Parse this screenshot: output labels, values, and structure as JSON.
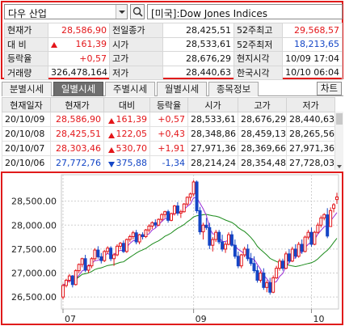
{
  "search": {
    "stock_name": "다우 산업",
    "index_label": "[미국]:Dow Jones Indices"
  },
  "quote": {
    "rows": [
      [
        {
          "label": "현재가"
        },
        {
          "value": "28,586,90",
          "cls": "up"
        },
        {
          "label": "전일종가"
        },
        {
          "value": "28,425,51"
        },
        {
          "label": "52주최고"
        },
        {
          "value": "29,568,57",
          "cls": "up"
        }
      ],
      [
        {
          "label": "대  비"
        },
        {
          "value": "161,39",
          "cls": "up",
          "arrow": "up"
        },
        {
          "label": "시가"
        },
        {
          "value": "28,533,61"
        },
        {
          "label": "52주최저"
        },
        {
          "value": "18,213,65",
          "cls": "down"
        }
      ],
      [
        {
          "label": "등락율"
        },
        {
          "value": "+0,57",
          "cls": "up"
        },
        {
          "label": "고가"
        },
        {
          "value": "28,676,29"
        },
        {
          "label": "현지시각"
        },
        {
          "value": "10/09 17:04"
        }
      ],
      [
        {
          "label": "거래량"
        },
        {
          "value": "326,478,164"
        },
        {
          "label": "저가"
        },
        {
          "value": "28,440,63"
        },
        {
          "label": "한국시각"
        },
        {
          "value": "10/10 06:04"
        }
      ]
    ]
  },
  "tabs": [
    {
      "label": "분별시세",
      "active": false
    },
    {
      "label": "일별시세",
      "active": true
    },
    {
      "label": "주별시세",
      "active": false
    },
    {
      "label": "월별시세",
      "active": false
    },
    {
      "label": "종목정보",
      "active": false
    }
  ],
  "chart_button": "차트",
  "daily": {
    "headers": [
      "현재일자",
      "현재가",
      "대비",
      "등락율",
      "시가",
      "고가",
      "저가"
    ],
    "rows": [
      {
        "date": "20/10/09",
        "price": "28,586,90",
        "change": "161,39",
        "dir": "up",
        "rate": "+0,57",
        "open": "28,533,61",
        "high": "28,676,29",
        "low": "28,440,63"
      },
      {
        "date": "20/10/08",
        "price": "28,425,51",
        "change": "122,05",
        "dir": "up",
        "rate": "+0,43",
        "open": "28,348,86",
        "high": "28,459,13",
        "low": "28,265,56"
      },
      {
        "date": "20/10/07",
        "price": "28,303,46",
        "change": "530,70",
        "dir": "up",
        "rate": "+1,91",
        "open": "27,971,36",
        "high": "28,369,66",
        "low": "27,971,36"
      },
      {
        "date": "20/10/06",
        "price": "27,772,76",
        "change": "375,88",
        "dir": "down",
        "rate": "-1,34",
        "open": "28,214,24",
        "high": "28,354,48",
        "low": "27,728,03"
      }
    ]
  },
  "chart_data": {
    "type": "candlestick",
    "y_ticks": [
      "28,500.00",
      "28,000.00",
      "27,500.00",
      "27,000.00",
      "26,500.00"
    ],
    "y_tick_values": [
      28500,
      28000,
      27500,
      27000,
      26500
    ],
    "ylim": [
      26250,
      28950
    ],
    "x_ticks": [
      {
        "label": "07",
        "index": 0
      },
      {
        "label": "09",
        "index": 41
      },
      {
        "label": "10",
        "index": 78
      }
    ],
    "colors": {
      "up": "#e3161a",
      "down": "#1446c6",
      "ma_short": "#9a2bd6",
      "ma_long": "#1a8a1a"
    },
    "candles": [
      [
        26500,
        26780,
        26450,
        26740
      ],
      [
        26740,
        26880,
        26700,
        26850
      ],
      [
        26850,
        26980,
        26800,
        26940
      ],
      [
        26940,
        26960,
        26700,
        26760
      ],
      [
        26760,
        27080,
        26740,
        27050
      ],
      [
        27050,
        27200,
        27000,
        27180
      ],
      [
        27180,
        27320,
        27120,
        27300
      ],
      [
        27300,
        27380,
        27020,
        27060
      ],
      [
        27060,
        27180,
        27000,
        27150
      ],
      [
        27150,
        27330,
        27100,
        27300
      ],
      [
        27300,
        27520,
        27260,
        27480
      ],
      [
        27480,
        27560,
        27300,
        27340
      ],
      [
        27340,
        27420,
        27200,
        27260
      ],
      [
        27260,
        27480,
        27230,
        27450
      ],
      [
        27450,
        27560,
        27400,
        27520
      ],
      [
        27520,
        27560,
        27250,
        27300
      ],
      [
        27300,
        27420,
        27150,
        27380
      ],
      [
        27380,
        27600,
        27350,
        27560
      ],
      [
        27560,
        27650,
        27500,
        27620
      ],
      [
        27620,
        27680,
        27420,
        27450
      ],
      [
        27450,
        27720,
        27420,
        27700
      ],
      [
        27700,
        27800,
        27650,
        27760
      ],
      [
        27760,
        27880,
        27700,
        27840
      ],
      [
        27840,
        27900,
        27600,
        27650
      ],
      [
        27650,
        27820,
        27600,
        27800
      ],
      [
        27800,
        27850,
        27700,
        27760
      ],
      [
        27760,
        27920,
        27730,
        27900
      ],
      [
        27900,
        28020,
        27850,
        27980
      ],
      [
        27980,
        28080,
        27920,
        28050
      ],
      [
        28050,
        28120,
        27950,
        28000
      ],
      [
        28000,
        28140,
        27980,
        28120
      ],
      [
        28120,
        28250,
        28080,
        28220
      ],
      [
        28220,
        28300,
        28150,
        28280
      ],
      [
        28280,
        28320,
        28050,
        28100
      ],
      [
        28100,
        28260,
        28080,
        28240
      ],
      [
        28240,
        28420,
        28200,
        28400
      ],
      [
        28400,
        28480,
        28200,
        28250
      ],
      [
        28250,
        28320,
        28150,
        28280
      ],
      [
        28280,
        28460,
        28260,
        28440
      ],
      [
        28440,
        28600,
        28400,
        28580
      ],
      [
        28580,
        28680,
        28500,
        28650
      ],
      [
        28650,
        28940,
        28600,
        28900
      ],
      [
        28900,
        28930,
        28250,
        28300
      ],
      [
        28300,
        28380,
        27800,
        27860
      ],
      [
        27860,
        28050,
        27700,
        28000
      ],
      [
        28000,
        28150,
        27900,
        27950
      ],
      [
        27950,
        28050,
        27500,
        27580
      ],
      [
        27580,
        27750,
        27450,
        27700
      ],
      [
        27700,
        27900,
        27650,
        27850
      ],
      [
        27850,
        27900,
        27600,
        27650
      ],
      [
        27650,
        27800,
        27450,
        27500
      ],
      [
        27500,
        27650,
        27420,
        27600
      ],
      [
        27600,
        27850,
        27580,
        27800
      ],
      [
        27800,
        27880,
        27550,
        27580
      ],
      [
        27580,
        27700,
        27300,
        27350
      ],
      [
        27350,
        27450,
        27100,
        27150
      ],
      [
        27150,
        27400,
        27100,
        27380
      ],
      [
        27380,
        27550,
        27330,
        27500
      ],
      [
        27500,
        27600,
        27250,
        27300
      ],
      [
        27300,
        27420,
        27150,
        27200
      ],
      [
        27200,
        27350,
        27000,
        27050
      ],
      [
        27050,
        27150,
        26800,
        26850
      ],
      [
        26850,
        27050,
        26800,
        27000
      ],
      [
        27000,
        27100,
        26650,
        26700
      ],
      [
        26700,
        26850,
        26600,
        26800
      ],
      [
        26800,
        26900,
        26550,
        26600
      ],
      [
        26600,
        26950,
        26580,
        26900
      ],
      [
        26900,
        27150,
        26880,
        27100
      ],
      [
        27100,
        27300,
        27050,
        27250
      ],
      [
        27250,
        27300,
        27050,
        27100
      ],
      [
        27100,
        27450,
        27080,
        27400
      ],
      [
        27400,
        27500,
        27200,
        27250
      ],
      [
        27250,
        27550,
        27230,
        27500
      ],
      [
        27500,
        27600,
        27300,
        27350
      ],
      [
        27350,
        27650,
        27320,
        27600
      ],
      [
        27600,
        27700,
        27400,
        27450
      ],
      [
        27450,
        27780,
        27430,
        27750
      ],
      [
        27750,
        27900,
        27700,
        27850
      ],
      [
        27850,
        27950,
        27550,
        27600
      ],
      [
        27600,
        27880,
        27580,
        27850
      ],
      [
        27850,
        28050,
        27820,
        28000
      ],
      [
        28000,
        28200,
        27950,
        28150
      ],
      [
        28150,
        28250,
        28100,
        28220
      ],
      [
        28214,
        28354,
        27728,
        27772
      ],
      [
        27971,
        28370,
        27971,
        28303
      ],
      [
        28349,
        28459,
        28266,
        28426
      ],
      [
        28534,
        28676,
        28441,
        28587
      ]
    ]
  }
}
